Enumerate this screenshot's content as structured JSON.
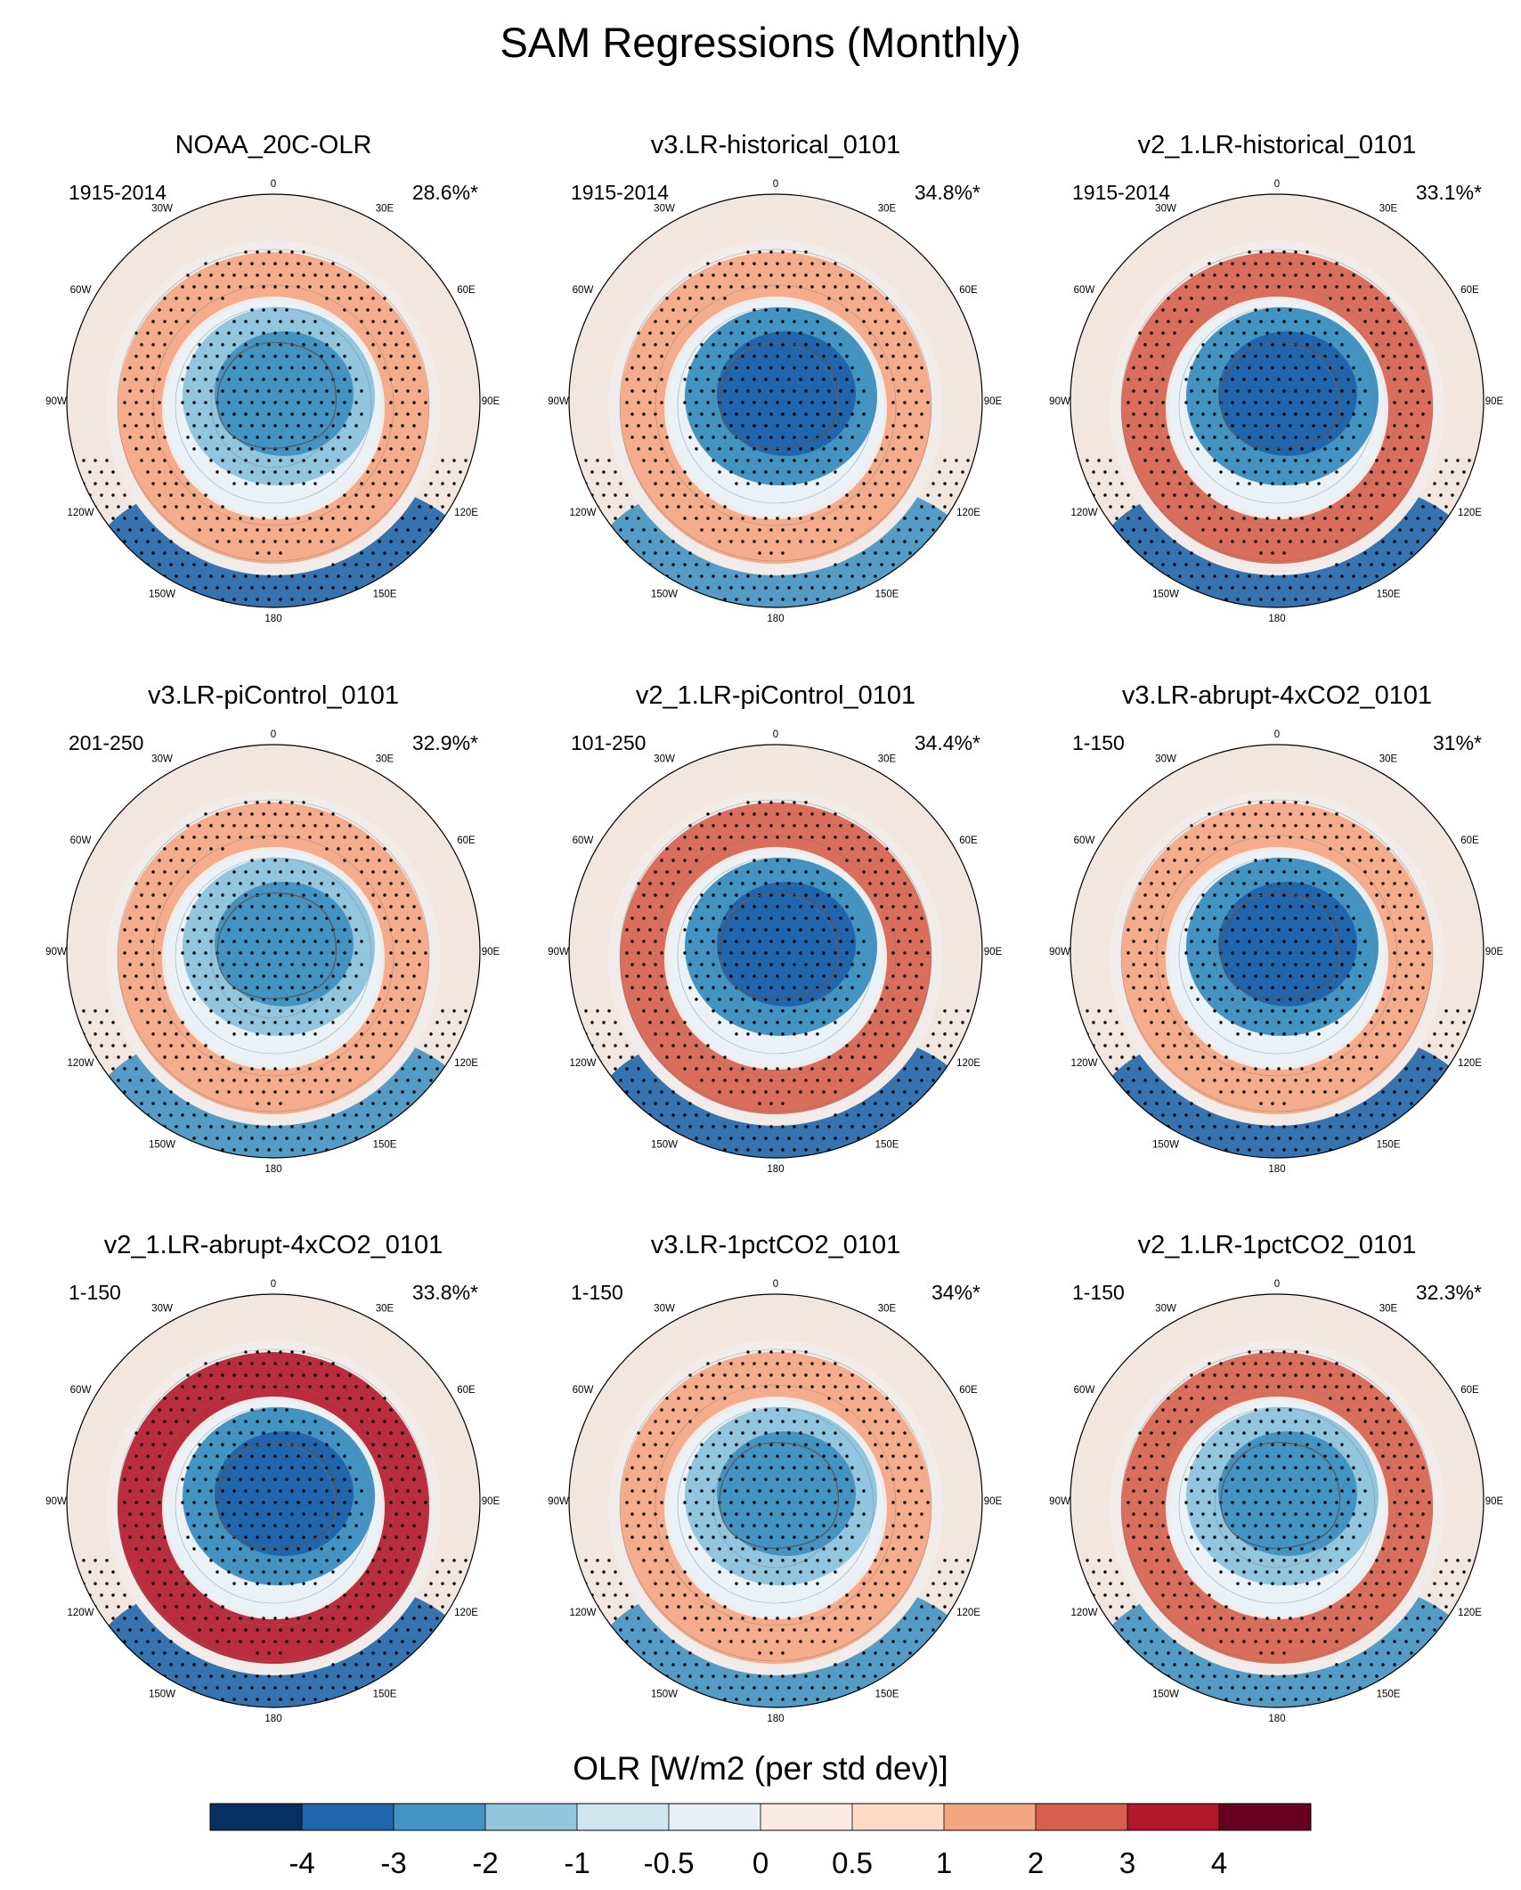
{
  "title": "SAM Regressions (Monthly)",
  "colors": {
    "levels": [
      "#053061",
      "#2166ac",
      "#4393c3",
      "#92c5de",
      "#d1e5f0",
      "#f7f7f7",
      "#fddbc7",
      "#f4a582",
      "#d6604d",
      "#b2182b",
      "#67001f"
    ]
  },
  "chart_data": {
    "type": "polar-map-panels",
    "title": "SAM Regressions (Monthly)",
    "colorbar": {
      "label": "OLR [W/m2 (per std dev)]",
      "ticks": [
        "-4",
        "-3",
        "-2",
        "-1",
        "-0.5",
        "0",
        "0.5",
        "1",
        "2",
        "3",
        "4"
      ],
      "bins": 12
    },
    "longitude_labels": [
      "0",
      "30E",
      "60E",
      "90E",
      "120E",
      "150E",
      "180",
      "150W",
      "120W",
      "90W",
      "60W",
      "30W"
    ],
    "panels": [
      {
        "title": "NOAA_20C-OLR",
        "period": "1915-2014",
        "variance": "28.6%*",
        "center_value": -2,
        "ring_value": 1.5,
        "outer_value": -2.5
      },
      {
        "title": "v3.LR-historical_0101",
        "period": "1915-2014",
        "variance": "34.8%*",
        "center_value": -2.5,
        "ring_value": 1.5,
        "outer_value": -2
      },
      {
        "title": "v2_1.LR-historical_0101",
        "period": "1915-2014",
        "variance": "33.1%*",
        "center_value": -2.5,
        "ring_value": 2.5,
        "outer_value": -2.5
      },
      {
        "title": "v3.LR-piControl_0101",
        "period": "201-250",
        "variance": "32.9%*",
        "center_value": -2,
        "ring_value": 1.5,
        "outer_value": -2
      },
      {
        "title": "v2_1.LR-piControl_0101",
        "period": "101-250",
        "variance": "34.4%*",
        "center_value": -2.5,
        "ring_value": 2.5,
        "outer_value": -2.5
      },
      {
        "title": "v3.LR-abrupt-4xCO2_0101",
        "period": "1-150",
        "variance": "31%*",
        "center_value": -2.5,
        "ring_value": 1.5,
        "outer_value": -2.5
      },
      {
        "title": "v2_1.LR-abrupt-4xCO2_0101",
        "period": "1-150",
        "variance": "33.8%*",
        "center_value": -2.5,
        "ring_value": 3,
        "outer_value": -2.5
      },
      {
        "title": "v3.LR-1pctCO2_0101",
        "period": "1-150",
        "variance": "34%*",
        "center_value": -2,
        "ring_value": 1.5,
        "outer_value": -2
      },
      {
        "title": "v2_1.LR-1pctCO2_0101",
        "period": "1-150",
        "variance": "32.3%*",
        "center_value": -2,
        "ring_value": 2.5,
        "outer_value": -2
      }
    ]
  }
}
